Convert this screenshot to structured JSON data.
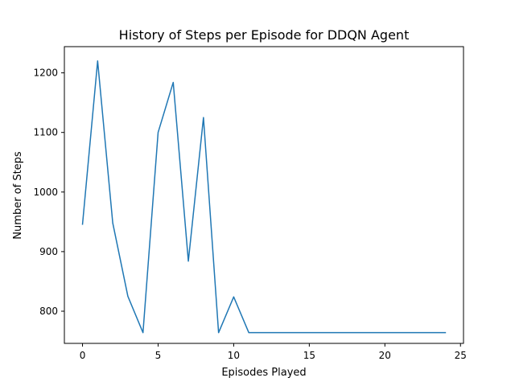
{
  "chart_data": {
    "type": "line",
    "title": "History of Steps per Episode for DDQN Agent",
    "xlabel": "Episodes Played",
    "ylabel": "Number of Steps",
    "xlim": [
      -1.2,
      25.2
    ],
    "ylim": [
      746,
      1244
    ],
    "xticks": [
      0,
      5,
      10,
      15,
      20,
      25
    ],
    "yticks": [
      800,
      900,
      1000,
      1100,
      1200
    ],
    "grid": false,
    "series": [
      {
        "color": "#1f77b4",
        "x": [
          0,
          1,
          2,
          3,
          4,
          5,
          6,
          7,
          8,
          9,
          10,
          11,
          12,
          13,
          14,
          15,
          16,
          17,
          18,
          19,
          20,
          21,
          22,
          23,
          24
        ],
        "y": [
          946,
          1220,
          948,
          825,
          764,
          1100,
          1184,
          884,
          1125,
          764,
          824,
          764,
          764,
          764,
          764,
          764,
          764,
          764,
          764,
          764,
          764,
          764,
          764,
          764,
          764
        ]
      }
    ]
  }
}
